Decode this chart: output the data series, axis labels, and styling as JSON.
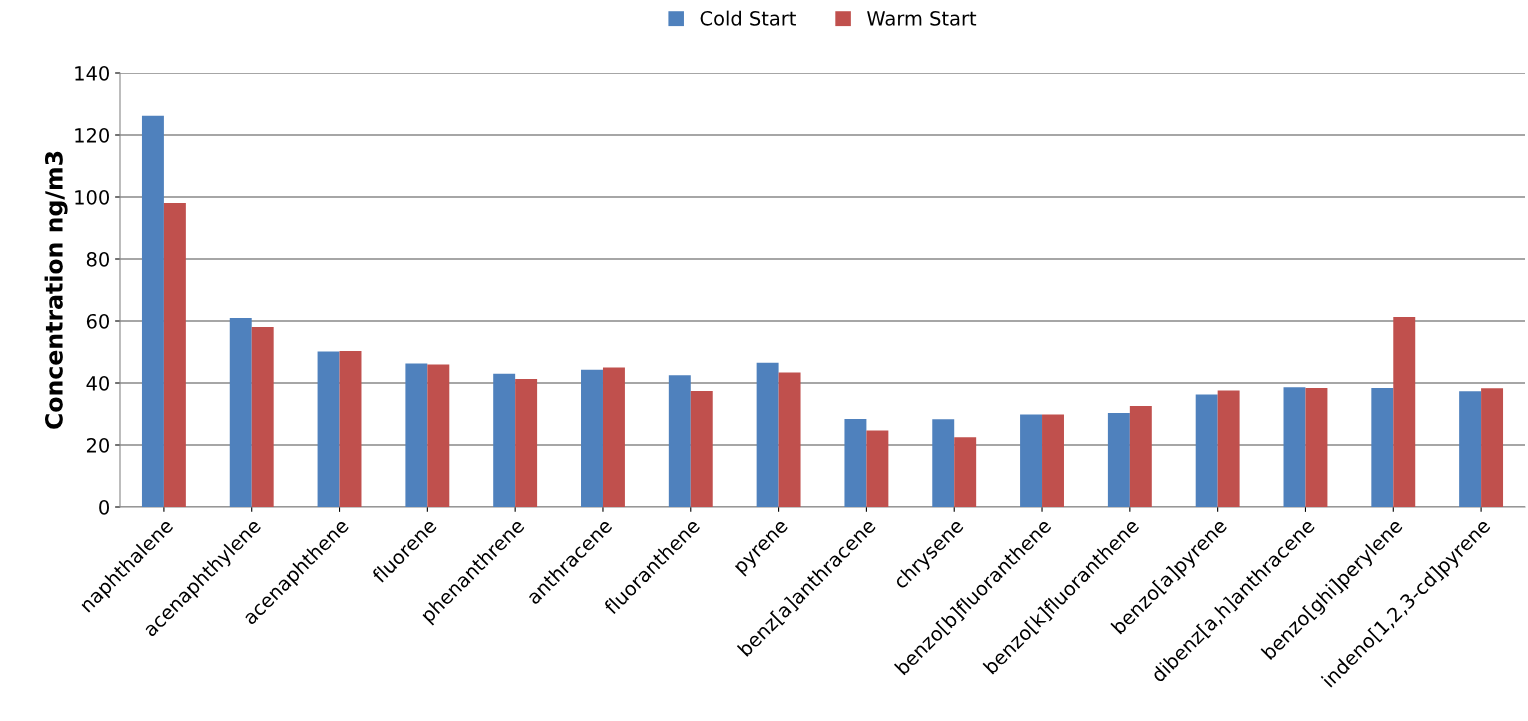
{
  "chart_data": {
    "type": "bar",
    "ylabel": "Concentration ng/m3",
    "categories": [
      "naphthalene",
      "acenaphthylene",
      "acenaphthene",
      "fluorene",
      "phenanthrene",
      "anthracene",
      "fluoranthene",
      "pyrene",
      "benz[a]anthracene",
      "chrysene",
      "benzo[b]fluoranthene",
      "benzo[k]fluoranthene",
      "benzo[a]pyrene",
      "dibenz[a,h]anthracene",
      "benzo[ghi]perylene",
      "indeno[1,2,3-cd]pyrene"
    ],
    "series": [
      {
        "name": "Cold Start",
        "color": "#4f81bd",
        "values": [
          126.2,
          61.0,
          50.2,
          46.3,
          43.0,
          44.3,
          42.5,
          46.5,
          28.4,
          28.3,
          29.8,
          30.3,
          36.3,
          38.6,
          38.4,
          37.3
        ]
      },
      {
        "name": "Warm Start",
        "color": "#c0504d",
        "values": [
          98.1,
          58.1,
          50.3,
          46.0,
          41.3,
          45.0,
          37.4,
          43.4,
          24.7,
          22.5,
          29.8,
          32.6,
          37.6,
          38.4,
          61.3,
          38.3
        ]
      }
    ],
    "ylim": [
      0,
      140
    ],
    "yticks": [
      0,
      20,
      40,
      60,
      80,
      100,
      120,
      140
    ],
    "grid": "y",
    "legend": "top"
  }
}
